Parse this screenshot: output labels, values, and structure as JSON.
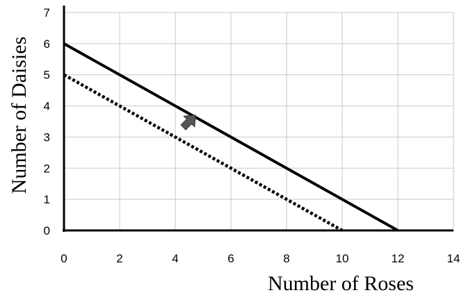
{
  "chart_data": {
    "type": "line",
    "xlabel": "Number of Roses",
    "ylabel": "Number of Daisies",
    "xlim": [
      0,
      14
    ],
    "ylim": [
      0,
      7
    ],
    "xticks": [
      0,
      2,
      4,
      6,
      8,
      10,
      12,
      14
    ],
    "yticks": [
      0,
      1,
      2,
      3,
      4,
      5,
      6,
      7
    ],
    "grid": true,
    "series": [
      {
        "style": "solid",
        "color": "#000000",
        "x": [
          0,
          12
        ],
        "y": [
          6,
          0
        ]
      },
      {
        "style": "dotted",
        "color": "#000000",
        "x": [
          0,
          10
        ],
        "y": [
          5,
          0
        ]
      }
    ],
    "annotations": [
      {
        "kind": "arrow",
        "direction": "up-right",
        "color": "#555555",
        "x": 4.5,
        "y": 3.5
      }
    ]
  }
}
